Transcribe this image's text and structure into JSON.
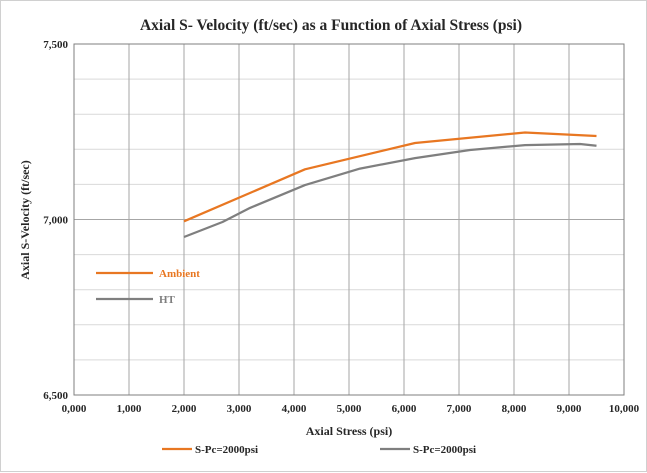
{
  "chart_data": {
    "type": "line",
    "title": "Axial S- Velocity (ft/sec) as a Function of Axial Stress (psi)",
    "xlabel": "Axial Stress (psi)",
    "ylabel": "Axial S-Velocity (ft/sec)",
    "xlim": [
      0,
      10000
    ],
    "ylim": [
      6500,
      7500
    ],
    "x_ticks": [
      0,
      1000,
      2000,
      3000,
      4000,
      5000,
      6000,
      7000,
      8000,
      9000,
      10000
    ],
    "x_tick_labels": [
      "0,000",
      "1,000",
      "2,000",
      "3,000",
      "4,000",
      "5,000",
      "6,000",
      "7,000",
      "8,000",
      "9,000",
      "10,000"
    ],
    "y_ticks": [
      6500,
      7000,
      7500
    ],
    "y_tick_labels": [
      "6,500",
      "7,000",
      "7,500"
    ],
    "y_minor_gridlines": [
      6600,
      6700,
      6800,
      6900,
      7100,
      7200,
      7300,
      7400
    ],
    "grid": true,
    "series": [
      {
        "name": "S-Pc=2000psi",
        "color": "#E87722",
        "x": [
          2000,
          4200,
          6200,
          8200,
          9500
        ],
        "y": [
          6995,
          7143,
          7218,
          7248,
          7238
        ]
      },
      {
        "name": "S-Pc=2000psi",
        "color": "#7F7F7F",
        "x": [
          2000,
          2700,
          3200,
          4200,
          5200,
          6200,
          7200,
          8200,
          9200,
          9500
        ],
        "y": [
          6950,
          6993,
          7033,
          7098,
          7145,
          7175,
          7198,
          7212,
          7215,
          7210
        ]
      }
    ],
    "annotations": [
      {
        "text": "Ambient",
        "color": "#E87722"
      },
      {
        "text": "HT",
        "color": "#7F7F7F"
      }
    ],
    "legend_position": "bottom"
  }
}
